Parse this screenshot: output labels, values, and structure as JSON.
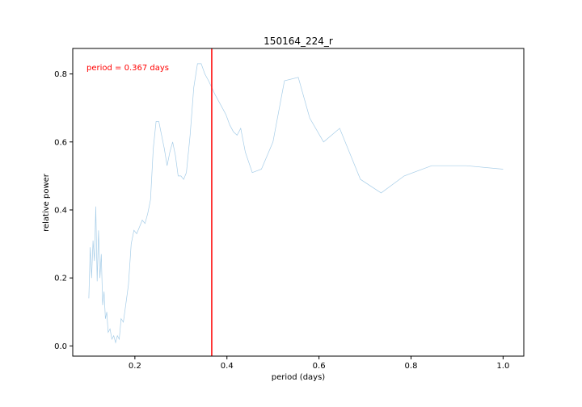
{
  "chart_data": {
    "type": "line",
    "title": "150164_224_r",
    "xlabel": "period (days)",
    "ylabel": "relative power",
    "xlim": [
      0.065,
      1.045
    ],
    "ylim": [
      -0.03,
      0.875
    ],
    "xticks": [
      0.2,
      0.4,
      0.6,
      0.8,
      1.0
    ],
    "xtick_labels": [
      "0.2",
      "0.4",
      "0.6",
      "0.8",
      "1.0"
    ],
    "yticks": [
      0.0,
      0.2,
      0.4,
      0.6,
      0.8
    ],
    "ytick_labels": [
      "0.0",
      "0.2",
      "0.4",
      "0.6",
      "0.8"
    ],
    "grid": false,
    "line_color": "#a6cde8",
    "marker_color": "#ff0000",
    "marker_x": 0.367,
    "annotation": "period = 0.367 days",
    "series": [
      {
        "x": [
          0.1,
          0.103,
          0.106,
          0.109,
          0.112,
          0.115,
          0.118,
          0.121,
          0.124,
          0.127,
          0.13,
          0.133,
          0.136,
          0.139,
          0.142,
          0.146,
          0.15,
          0.154,
          0.158,
          0.162,
          0.166,
          0.17,
          0.175,
          0.18,
          0.186,
          0.192,
          0.198,
          0.204,
          0.21,
          0.216,
          0.222,
          0.228,
          0.234,
          0.24,
          0.246,
          0.252,
          0.258,
          0.264,
          0.27,
          0.276,
          0.282,
          0.288,
          0.294,
          0.3,
          0.306,
          0.312,
          0.32,
          0.328,
          0.336,
          0.344,
          0.352,
          0.36,
          0.367,
          0.374,
          0.382,
          0.39,
          0.398,
          0.406,
          0.414,
          0.422,
          0.43,
          0.44,
          0.455,
          0.475,
          0.5,
          0.525,
          0.555,
          0.58,
          0.61,
          0.645,
          0.69,
          0.735,
          0.785,
          0.845,
          0.92,
          1.0
        ],
        "y": [
          0.14,
          0.29,
          0.2,
          0.31,
          0.25,
          0.41,
          0.19,
          0.34,
          0.2,
          0.27,
          0.12,
          0.16,
          0.08,
          0.1,
          0.04,
          0.05,
          0.02,
          0.03,
          0.01,
          0.03,
          0.02,
          0.08,
          0.07,
          0.12,
          0.18,
          0.3,
          0.34,
          0.33,
          0.35,
          0.37,
          0.36,
          0.39,
          0.43,
          0.58,
          0.66,
          0.66,
          0.62,
          0.58,
          0.53,
          0.57,
          0.6,
          0.56,
          0.5,
          0.5,
          0.49,
          0.51,
          0.62,
          0.76,
          0.83,
          0.83,
          0.8,
          0.78,
          0.76,
          0.74,
          0.72,
          0.7,
          0.68,
          0.65,
          0.63,
          0.62,
          0.64,
          0.57,
          0.51,
          0.52,
          0.6,
          0.78,
          0.79,
          0.67,
          0.6,
          0.64,
          0.49,
          0.45,
          0.5,
          0.53,
          0.53,
          0.52
        ]
      }
    ]
  }
}
